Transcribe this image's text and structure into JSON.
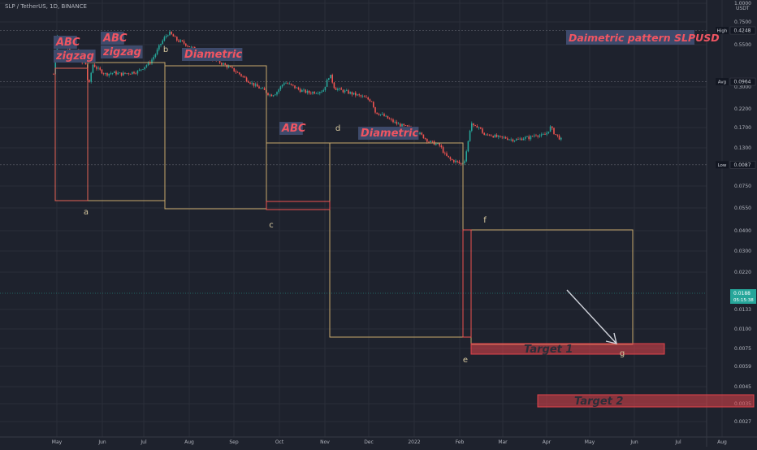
{
  "header": {
    "title": "SLP / TetherUS, 1D, BINANCE",
    "currency": "USDT"
  },
  "colors": {
    "background": "#1e222d",
    "up_candle": "#26a69a",
    "down_candle": "#ef5350",
    "pattern_box": "#c8a86a",
    "label_text": "#f05562",
    "label_bg": "#3e4a6b",
    "target_fill": "#e3434a",
    "price_badge": "#26a69a",
    "axis_text": "#b2b5be"
  },
  "chart_data": {
    "type": "candlestick",
    "title": "Daimetric pattern SLPUSD",
    "y_scale": "log",
    "ylim": [
      0.0008,
      1.1
    ],
    "x_tick_labels": [
      "May",
      "Jun",
      "Jul",
      "Aug",
      "Sep",
      "Oct",
      "Nov",
      "Dec",
      "2022",
      "Feb",
      "Mar",
      "Apr",
      "May",
      "Jun",
      "Jul",
      "Aug"
    ],
    "y_tick_labels": [
      "1.0000",
      "0.7500",
      "0.5500",
      "0.3000",
      "0.2200",
      "0.1700",
      "0.1300",
      "0.0750",
      "0.0550",
      "0.0400",
      "0.0300",
      "0.0220",
      "0.0133",
      "0.0100",
      "0.0075",
      "0.0059",
      "0.0045",
      "0.0035",
      "0.0027"
    ],
    "price_markers": [
      {
        "label": "High",
        "value": "0.4248"
      },
      {
        "label": "Avg",
        "value": "0.0964"
      },
      {
        "label": "Low",
        "value": "0.0087"
      }
    ],
    "current_price": {
      "value": "0.0188",
      "countdown": "05:15:38"
    },
    "wave_labels": [
      "a",
      "b",
      "c",
      "d",
      "e",
      "f",
      "g"
    ],
    "pattern_labels": [
      {
        "text": "ABC\nzigzag"
      },
      {
        "text": "ABC\nzigzag"
      },
      {
        "text": "Diametric"
      },
      {
        "text": "ABC"
      },
      {
        "text": "Diametric"
      }
    ],
    "targets": [
      {
        "label": "Target 1"
      },
      {
        "label": "Target 2"
      }
    ],
    "grid": true,
    "legend": "none"
  }
}
